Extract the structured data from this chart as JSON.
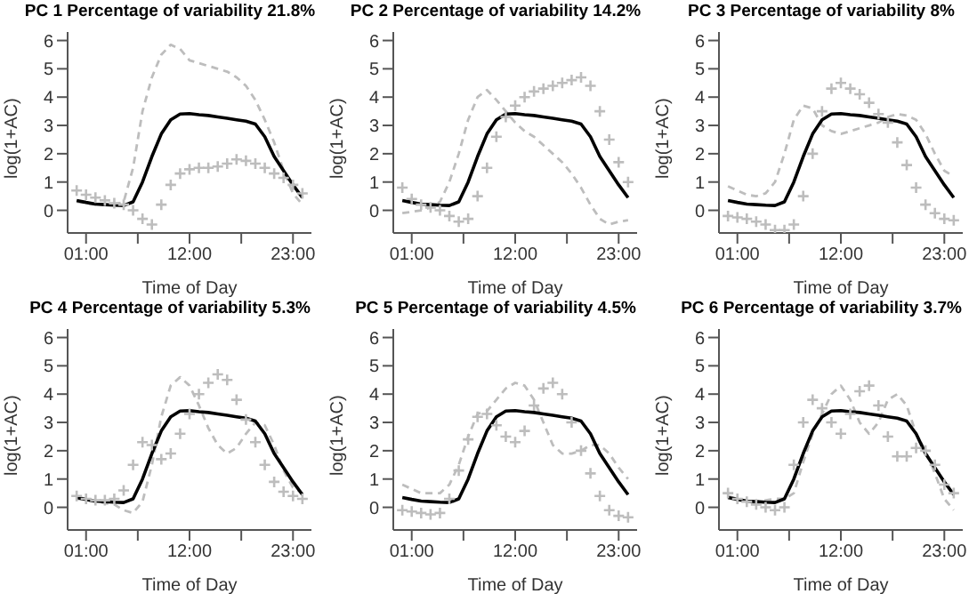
{
  "chart_data": [
    {
      "type": "line",
      "title": "PC 1 Percentage of variability 21.8%",
      "xlabel": "Time of Day",
      "ylabel": "log(1+AC)",
      "x": [
        0,
        1,
        2,
        3,
        4,
        5,
        6,
        7,
        8,
        9,
        10,
        11,
        12,
        13,
        14,
        15,
        16,
        17,
        18,
        19,
        20,
        21,
        22,
        23,
        24
      ],
      "xlim": [
        -0.96,
        24.96
      ],
      "xticks": [
        {
          "value": 1,
          "label": "01:00"
        },
        {
          "value": 6.5,
          "label": null
        },
        {
          "value": 12,
          "label": "12:00"
        },
        {
          "value": 17.5,
          "label": null
        },
        {
          "value": 23,
          "label": "23:00"
        }
      ],
      "ylim": [
        -0.8,
        6.3
      ],
      "yticks": [
        0,
        1,
        2,
        3,
        4,
        5,
        6
      ],
      "series": [
        {
          "type": "line",
          "color": "#000000",
          "marker": "none",
          "line_style": "solid",
          "values": [
            0.35,
            0.28,
            0.22,
            0.2,
            0.18,
            0.17,
            0.3,
            1.0,
            1.9,
            2.7,
            3.2,
            3.4,
            3.42,
            3.38,
            3.35,
            3.3,
            3.25,
            3.2,
            3.15,
            3.05,
            2.6,
            1.9,
            1.4,
            0.9,
            0.45
          ]
        },
        {
          "type": "line",
          "color": "#bdbdbd",
          "marker": "none",
          "line_style": "dashed",
          "values": [
            0.3,
            0.25,
            0.2,
            0.2,
            0.2,
            0.3,
            1.5,
            3.5,
            4.7,
            5.5,
            5.85,
            5.7,
            5.3,
            5.2,
            5.1,
            5.0,
            4.9,
            4.7,
            4.4,
            3.9,
            3.2,
            2.4,
            1.4,
            0.6,
            0.2
          ]
        },
        {
          "type": "scatter",
          "color": "#bdbdbd",
          "marker": "cross",
          "values": [
            0.7,
            0.55,
            0.45,
            0.35,
            0.25,
            0.2,
            0.0,
            -0.3,
            -0.5,
            0.2,
            0.9,
            1.3,
            1.45,
            1.5,
            1.5,
            1.55,
            1.65,
            1.8,
            1.75,
            1.65,
            1.5,
            1.3,
            1.15,
            0.9,
            0.6
          ]
        }
      ]
    },
    {
      "type": "line",
      "title": "PC 2 Percentage of variability 14.2%",
      "xlabel": "Time of Day",
      "ylabel": "log(1+AC)",
      "x": [
        0,
        1,
        2,
        3,
        4,
        5,
        6,
        7,
        8,
        9,
        10,
        11,
        12,
        13,
        14,
        15,
        16,
        17,
        18,
        19,
        20,
        21,
        22,
        23,
        24
      ],
      "xlim": [
        -0.96,
        24.96
      ],
      "xticks": [
        {
          "value": 1,
          "label": "01:00"
        },
        {
          "value": 6.5,
          "label": null
        },
        {
          "value": 12,
          "label": "12:00"
        },
        {
          "value": 17.5,
          "label": null
        },
        {
          "value": 23,
          "label": "23:00"
        }
      ],
      "ylim": [
        -0.8,
        6.3
      ],
      "yticks": [
        0,
        1,
        2,
        3,
        4,
        5,
        6
      ],
      "series": [
        {
          "type": "line",
          "color": "#000000",
          "marker": "none",
          "line_style": "solid",
          "values": [
            0.35,
            0.28,
            0.22,
            0.2,
            0.18,
            0.17,
            0.3,
            1.0,
            1.9,
            2.7,
            3.2,
            3.4,
            3.42,
            3.38,
            3.35,
            3.3,
            3.25,
            3.2,
            3.15,
            3.05,
            2.6,
            1.9,
            1.4,
            0.9,
            0.45
          ]
        },
        {
          "type": "line",
          "color": "#bdbdbd",
          "marker": "none",
          "line_style": "dashed",
          "values": [
            -0.1,
            -0.05,
            0,
            0.1,
            0.3,
            1.0,
            2.0,
            3.2,
            4.0,
            4.25,
            3.9,
            3.5,
            3.1,
            2.8,
            2.6,
            2.3,
            2.0,
            1.7,
            1.3,
            0.8,
            0.2,
            -0.3,
            -0.5,
            -0.4,
            -0.35
          ]
        },
        {
          "type": "scatter",
          "color": "#bdbdbd",
          "marker": "cross",
          "values": [
            0.8,
            0.4,
            0.2,
            0.1,
            0.0,
            -0.2,
            -0.4,
            -0.3,
            0.5,
            1.5,
            2.6,
            3.3,
            3.7,
            4.0,
            4.2,
            4.3,
            4.4,
            4.5,
            4.6,
            4.7,
            4.4,
            3.5,
            2.5,
            1.7,
            1.0
          ]
        }
      ]
    },
    {
      "type": "line",
      "title": "PC 3 Percentage of variability 8%",
      "xlabel": "Time of Day",
      "ylabel": "log(1+AC)",
      "x": [
        0,
        1,
        2,
        3,
        4,
        5,
        6,
        7,
        8,
        9,
        10,
        11,
        12,
        13,
        14,
        15,
        16,
        17,
        18,
        19,
        20,
        21,
        22,
        23,
        24
      ],
      "xlim": [
        -0.96,
        24.96
      ],
      "xticks": [
        {
          "value": 1,
          "label": "01:00"
        },
        {
          "value": 6.5,
          "label": null
        },
        {
          "value": 12,
          "label": "12:00"
        },
        {
          "value": 17.5,
          "label": null
        },
        {
          "value": 23,
          "label": "23:00"
        }
      ],
      "ylim": [
        -0.8,
        6.3
      ],
      "yticks": [
        0,
        1,
        2,
        3,
        4,
        5,
        6
      ],
      "series": [
        {
          "type": "line",
          "color": "#000000",
          "marker": "none",
          "line_style": "solid",
          "values": [
            0.35,
            0.28,
            0.22,
            0.2,
            0.18,
            0.17,
            0.3,
            1.0,
            1.9,
            2.7,
            3.2,
            3.4,
            3.42,
            3.38,
            3.35,
            3.3,
            3.25,
            3.2,
            3.15,
            3.05,
            2.6,
            1.9,
            1.4,
            0.9,
            0.45
          ]
        },
        {
          "type": "line",
          "color": "#bdbdbd",
          "marker": "none",
          "line_style": "dashed",
          "values": [
            0.85,
            0.7,
            0.55,
            0.5,
            0.6,
            1.0,
            2.0,
            3.2,
            3.7,
            3.6,
            3.0,
            2.8,
            2.7,
            2.8,
            2.9,
            3.0,
            3.1,
            3.3,
            3.4,
            3.35,
            3.2,
            2.7,
            2.0,
            1.4,
            1.2
          ]
        },
        {
          "type": "scatter",
          "color": "#bdbdbd",
          "marker": "cross",
          "values": [
            -0.2,
            -0.25,
            -0.3,
            -0.4,
            -0.5,
            -0.7,
            -0.7,
            -0.5,
            0.5,
            2.0,
            3.5,
            4.3,
            4.5,
            4.3,
            4.1,
            3.8,
            3.4,
            3.1,
            2.4,
            1.6,
            0.8,
            0.2,
            -0.1,
            -0.3,
            -0.35
          ]
        }
      ]
    },
    {
      "type": "line",
      "title": "PC 4 Percentage of variability 5.3%",
      "xlabel": "Time of Day",
      "ylabel": "log(1+AC)",
      "x": [
        0,
        1,
        2,
        3,
        4,
        5,
        6,
        7,
        8,
        9,
        10,
        11,
        12,
        13,
        14,
        15,
        16,
        17,
        18,
        19,
        20,
        21,
        22,
        23,
        24
      ],
      "xlim": [
        -0.96,
        24.96
      ],
      "xticks": [
        {
          "value": 1,
          "label": "01:00"
        },
        {
          "value": 6.5,
          "label": null
        },
        {
          "value": 12,
          "label": "12:00"
        },
        {
          "value": 17.5,
          "label": null
        },
        {
          "value": 23,
          "label": "23:00"
        }
      ],
      "ylim": [
        -0.8,
        6.3
      ],
      "yticks": [
        0,
        1,
        2,
        3,
        4,
        5,
        6
      ],
      "series": [
        {
          "type": "line",
          "color": "#000000",
          "marker": "none",
          "line_style": "solid",
          "values": [
            0.35,
            0.28,
            0.22,
            0.2,
            0.18,
            0.17,
            0.3,
            1.0,
            1.9,
            2.7,
            3.2,
            3.4,
            3.42,
            3.38,
            3.35,
            3.3,
            3.25,
            3.2,
            3.15,
            3.05,
            2.6,
            1.9,
            1.4,
            0.9,
            0.45
          ]
        },
        {
          "type": "line",
          "color": "#bdbdbd",
          "marker": "none",
          "line_style": "dashed",
          "values": [
            0.3,
            0.25,
            0.2,
            0.15,
            0.1,
            -0.1,
            -0.2,
            0.2,
            1.5,
            3.2,
            4.3,
            4.6,
            4.3,
            3.6,
            2.8,
            2.2,
            1.9,
            2.1,
            2.6,
            3.0,
            2.9,
            2.2,
            1.3,
            0.7,
            0.5
          ]
        },
        {
          "type": "scatter",
          "color": "#bdbdbd",
          "marker": "cross",
          "values": [
            0.4,
            0.3,
            0.25,
            0.25,
            0.3,
            0.6,
            1.5,
            2.3,
            2.2,
            1.7,
            1.9,
            2.6,
            3.3,
            4.0,
            4.4,
            4.7,
            4.5,
            3.8,
            3.1,
            2.3,
            1.5,
            0.9,
            0.55,
            0.4,
            0.3
          ]
        }
      ]
    },
    {
      "type": "line",
      "title": "PC 5 Percentage of variability 4.5%",
      "xlabel": "Time of Day",
      "ylabel": "log(1+AC)",
      "x": [
        0,
        1,
        2,
        3,
        4,
        5,
        6,
        7,
        8,
        9,
        10,
        11,
        12,
        13,
        14,
        15,
        16,
        17,
        18,
        19,
        20,
        21,
        22,
        23,
        24
      ],
      "xlim": [
        -0.96,
        24.96
      ],
      "xticks": [
        {
          "value": 1,
          "label": "01:00"
        },
        {
          "value": 6.5,
          "label": null
        },
        {
          "value": 12,
          "label": "12:00"
        },
        {
          "value": 17.5,
          "label": null
        },
        {
          "value": 23,
          "label": "23:00"
        }
      ],
      "ylim": [
        -0.8,
        6.3
      ],
      "yticks": [
        0,
        1,
        2,
        3,
        4,
        5,
        6
      ],
      "series": [
        {
          "type": "line",
          "color": "#000000",
          "marker": "none",
          "line_style": "solid",
          "values": [
            0.35,
            0.28,
            0.22,
            0.2,
            0.18,
            0.17,
            0.3,
            1.0,
            1.9,
            2.7,
            3.2,
            3.4,
            3.42,
            3.38,
            3.35,
            3.3,
            3.25,
            3.2,
            3.15,
            3.05,
            2.6,
            1.9,
            1.4,
            0.9,
            0.45
          ]
        },
        {
          "type": "line",
          "color": "#bdbdbd",
          "marker": "none",
          "line_style": "dashed",
          "values": [
            0.8,
            0.65,
            0.5,
            0.5,
            0.5,
            0.8,
            1.5,
            2.5,
            3.3,
            3.4,
            3.8,
            4.2,
            4.4,
            4.3,
            3.8,
            3.0,
            2.2,
            1.9,
            1.9,
            2.0,
            2.2,
            2.2,
            1.9,
            1.4,
            1.0
          ]
        },
        {
          "type": "scatter",
          "color": "#bdbdbd",
          "marker": "cross",
          "values": [
            -0.1,
            -0.15,
            -0.2,
            -0.25,
            -0.2,
            0.3,
            1.3,
            2.4,
            3.2,
            3.3,
            2.9,
            2.5,
            2.3,
            2.7,
            3.6,
            4.2,
            4.4,
            4.0,
            3.0,
            2.0,
            1.2,
            0.4,
            -0.1,
            -0.3,
            -0.35
          ]
        }
      ]
    },
    {
      "type": "line",
      "title": "PC 6 Percentage of variability 3.7%",
      "xlabel": "Time of Day",
      "ylabel": "log(1+AC)",
      "x": [
        0,
        1,
        2,
        3,
        4,
        5,
        6,
        7,
        8,
        9,
        10,
        11,
        12,
        13,
        14,
        15,
        16,
        17,
        18,
        19,
        20,
        21,
        22,
        23,
        24
      ],
      "xlim": [
        -0.96,
        24.96
      ],
      "xticks": [
        {
          "value": 1,
          "label": "01:00"
        },
        {
          "value": 6.5,
          "label": null
        },
        {
          "value": 12,
          "label": "12:00"
        },
        {
          "value": 17.5,
          "label": null
        },
        {
          "value": 23,
          "label": "23:00"
        }
      ],
      "ylim": [
        -0.8,
        6.3
      ],
      "yticks": [
        0,
        1,
        2,
        3,
        4,
        5,
        6
      ],
      "series": [
        {
          "type": "line",
          "color": "#000000",
          "marker": "none",
          "line_style": "solid",
          "values": [
            0.35,
            0.28,
            0.22,
            0.2,
            0.18,
            0.17,
            0.3,
            1.0,
            1.9,
            2.7,
            3.2,
            3.4,
            3.42,
            3.38,
            3.35,
            3.3,
            3.25,
            3.2,
            3.15,
            3.05,
            2.6,
            1.9,
            1.4,
            0.9,
            0.45
          ]
        },
        {
          "type": "line",
          "color": "#bdbdbd",
          "marker": "none",
          "line_style": "dashed",
          "values": [
            0.4,
            0.3,
            0.2,
            0.2,
            0.25,
            0.3,
            0.3,
            0.5,
            1.6,
            2.6,
            3.3,
            4.0,
            4.3,
            3.8,
            3.0,
            2.6,
            3.0,
            3.8,
            4.0,
            3.6,
            2.6,
            2.0,
            1.2,
            0.3,
            -0.1
          ]
        },
        {
          "type": "scatter",
          "color": "#bdbdbd",
          "marker": "cross",
          "values": [
            0.5,
            0.3,
            0.2,
            0.1,
            0.0,
            -0.1,
            0.0,
            1.5,
            3.0,
            3.8,
            3.5,
            3.0,
            2.6,
            3.3,
            4.1,
            4.3,
            3.6,
            2.5,
            1.8,
            1.8,
            2.1,
            2.0,
            1.5,
            0.8,
            0.5
          ]
        }
      ]
    }
  ]
}
